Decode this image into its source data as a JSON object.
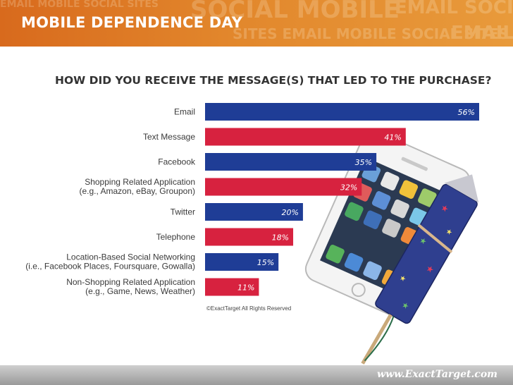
{
  "banner": {
    "title": "MOBILE DEPENDENCE DAY",
    "watermark": [
      "EMAIL MOBILE SOCIAL SITES",
      "SOCIAL MOBILE",
      "EMAIL SOCIAL",
      "SITES EMAIL MOBILE SOCIAL SITES",
      "EMAIL"
    ]
  },
  "colors": {
    "blue": "#1f3d96",
    "red": "#d7223f",
    "banner": "#e2872c"
  },
  "chart_data": {
    "type": "bar",
    "orientation": "horizontal",
    "title": "HOW DID YOU RECEIVE THE MESSAGE(S) THAT LED TO THE PURCHASE?",
    "categories": [
      [
        "Email"
      ],
      [
        "Text Message"
      ],
      [
        "Facebook"
      ],
      [
        "Shopping Related Application",
        "(e.g., Amazon, eBay, Groupon)"
      ],
      [
        "Twitter"
      ],
      [
        "Telephone"
      ],
      [
        "Location-Based Social Networking",
        "(i.e., Facebook Places, Foursquare, Gowalla)"
      ],
      [
        "Non-Shopping Related Application",
        "(e.g., Game, News, Weather)"
      ]
    ],
    "values": [
      56,
      41,
      35,
      32,
      20,
      18,
      15,
      11
    ],
    "value_labels": [
      "56%",
      "41%",
      "35%",
      "32%",
      "20%",
      "18%",
      "15%",
      "11%"
    ],
    "bar_colors": [
      "blue",
      "red",
      "blue",
      "red",
      "blue",
      "red",
      "blue",
      "red"
    ],
    "xlim": [
      0,
      56
    ],
    "grid": false,
    "legend": "none"
  },
  "copyright": "©ExactTarget All Rights Reserved",
  "footer": {
    "url": "www.ExactTarget.com"
  },
  "illustration": {
    "name": "phone-firework-illustration"
  }
}
